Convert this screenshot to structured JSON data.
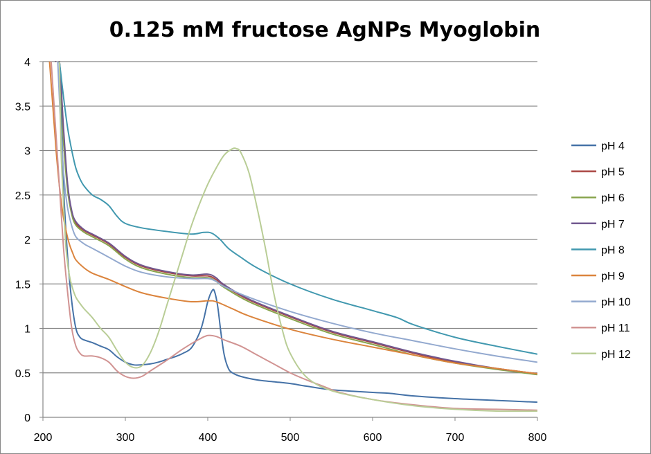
{
  "chart_data": {
    "type": "line",
    "title": "0.125 mM fructose AgNPs Myoglobin",
    "xlabel": "",
    "ylabel": "",
    "xlim": [
      200,
      800
    ],
    "ylim": [
      0,
      4
    ],
    "xticks": [
      200,
      300,
      400,
      500,
      600,
      700,
      800
    ],
    "yticks": [
      0,
      0.5,
      1,
      1.5,
      2,
      2.5,
      3,
      3.5,
      4
    ],
    "ytick_labels": [
      "0",
      "0.5",
      "1",
      "1.5",
      "2",
      "2.5",
      "3",
      "3.5",
      "4"
    ],
    "grid": "horizontal",
    "legend_position": "right",
    "series": [
      {
        "name": "pH 4",
        "color": "#4572A7",
        "x": [
          215,
          220,
          225,
          230,
          235,
          240,
          245,
          250,
          260,
          270,
          280,
          290,
          300,
          310,
          320,
          330,
          340,
          350,
          360,
          370,
          380,
          390,
          395,
          400,
          405,
          408,
          412,
          416,
          420,
          425,
          430,
          440,
          460,
          480,
          500,
          520,
          550,
          600,
          620,
          650,
          700,
          750,
          800
        ],
        "y": [
          4.0,
          4.0,
          2.6,
          1.8,
          1.3,
          1.0,
          0.9,
          0.87,
          0.84,
          0.8,
          0.76,
          0.68,
          0.62,
          0.59,
          0.59,
          0.6,
          0.62,
          0.65,
          0.68,
          0.72,
          0.78,
          0.95,
          1.1,
          1.3,
          1.42,
          1.42,
          1.25,
          0.95,
          0.7,
          0.55,
          0.5,
          0.46,
          0.42,
          0.4,
          0.38,
          0.35,
          0.31,
          0.28,
          0.27,
          0.24,
          0.21,
          0.19,
          0.17
        ]
      },
      {
        "name": "pH 5",
        "color": "#AA4643",
        "x": [
          215,
          220,
          225,
          230,
          235,
          240,
          250,
          260,
          280,
          300,
          320,
          350,
          380,
          400,
          410,
          420,
          450,
          500,
          550,
          600,
          650,
          700,
          750,
          800
        ],
        "y": [
          4.0,
          4.0,
          3.2,
          2.6,
          2.3,
          2.18,
          2.1,
          2.05,
          1.95,
          1.8,
          1.7,
          1.63,
          1.59,
          1.59,
          1.55,
          1.48,
          1.32,
          1.13,
          0.96,
          0.84,
          0.72,
          0.62,
          0.55,
          0.49
        ]
      },
      {
        "name": "pH 6",
        "color": "#89A54E",
        "x": [
          215,
          220,
          225,
          230,
          235,
          240,
          250,
          260,
          280,
          300,
          320,
          350,
          380,
          400,
          410,
          420,
          450,
          500,
          550,
          600,
          650,
          700,
          750,
          800
        ],
        "y": [
          4.0,
          4.0,
          3.1,
          2.55,
          2.28,
          2.16,
          2.08,
          2.03,
          1.93,
          1.78,
          1.68,
          1.61,
          1.57,
          1.57,
          1.53,
          1.46,
          1.3,
          1.11,
          0.94,
          0.82,
          0.7,
          0.61,
          0.54,
          0.48
        ]
      },
      {
        "name": "pH 7",
        "color": "#71588F",
        "x": [
          215,
          220,
          225,
          230,
          235,
          240,
          250,
          260,
          280,
          300,
          320,
          350,
          380,
          400,
          410,
          420,
          450,
          500,
          550,
          600,
          650,
          700,
          750,
          800
        ],
        "y": [
          4.0,
          4.0,
          3.25,
          2.62,
          2.32,
          2.2,
          2.11,
          2.06,
          1.96,
          1.81,
          1.71,
          1.64,
          1.6,
          1.61,
          1.57,
          1.49,
          1.33,
          1.14,
          0.97,
          0.85,
          0.73,
          0.63,
          0.55,
          0.49
        ]
      },
      {
        "name": "pH 8",
        "color": "#4198AF",
        "x": [
          220,
          225,
          230,
          235,
          240,
          245,
          250,
          260,
          270,
          280,
          290,
          300,
          320,
          350,
          380,
          395,
          405,
          415,
          425,
          440,
          460,
          500,
          550,
          600,
          630,
          650,
          700,
          750,
          800
        ],
        "y": [
          4.0,
          3.6,
          3.25,
          3.0,
          2.8,
          2.68,
          2.6,
          2.5,
          2.45,
          2.38,
          2.26,
          2.18,
          2.13,
          2.09,
          2.06,
          2.08,
          2.07,
          2.0,
          1.9,
          1.8,
          1.68,
          1.5,
          1.33,
          1.2,
          1.12,
          1.04,
          0.9,
          0.8,
          0.71
        ]
      },
      {
        "name": "pH 9",
        "color": "#DB843D",
        "x": [
          208,
          212,
          216,
          220,
          224,
          228,
          232,
          236,
          240,
          250,
          260,
          280,
          300,
          320,
          350,
          380,
          400,
          410,
          430,
          450,
          500,
          550,
          600,
          650,
          700,
          750,
          800
        ],
        "y": [
          4.0,
          3.5,
          3.0,
          2.6,
          2.3,
          2.1,
          1.95,
          1.85,
          1.77,
          1.68,
          1.62,
          1.55,
          1.47,
          1.4,
          1.34,
          1.3,
          1.31,
          1.3,
          1.22,
          1.14,
          0.99,
          0.88,
          0.79,
          0.7,
          0.61,
          0.55,
          0.49
        ]
      },
      {
        "name": "pH 10",
        "color": "#93A9CF",
        "x": [
          218,
          222,
          226,
          230,
          235,
          240,
          250,
          260,
          280,
          300,
          320,
          350,
          380,
          400,
          410,
          420,
          450,
          500,
          550,
          600,
          650,
          700,
          750,
          800
        ],
        "y": [
          4.0,
          3.2,
          2.65,
          2.35,
          2.15,
          2.03,
          1.95,
          1.9,
          1.8,
          1.7,
          1.63,
          1.58,
          1.56,
          1.56,
          1.53,
          1.47,
          1.35,
          1.19,
          1.06,
          0.95,
          0.86,
          0.77,
          0.69,
          0.62
        ]
      },
      {
        "name": "pH 11",
        "color": "#D19392",
        "x": [
          210,
          215,
          220,
          225,
          230,
          235,
          240,
          245,
          250,
          260,
          270,
          280,
          290,
          300,
          310,
          320,
          330,
          350,
          370,
          390,
          400,
          410,
          420,
          440,
          460,
          480,
          500,
          520,
          540,
          560,
          600,
          650,
          700,
          750,
          800
        ],
        "y": [
          4.0,
          3.3,
          2.6,
          1.9,
          1.4,
          1.0,
          0.8,
          0.72,
          0.69,
          0.69,
          0.67,
          0.62,
          0.52,
          0.46,
          0.44,
          0.46,
          0.52,
          0.64,
          0.77,
          0.88,
          0.92,
          0.91,
          0.87,
          0.8,
          0.7,
          0.6,
          0.5,
          0.42,
          0.35,
          0.28,
          0.2,
          0.14,
          0.1,
          0.09,
          0.08
        ]
      },
      {
        "name": "pH 12",
        "color": "#B9CD96",
        "x": [
          220,
          222,
          225,
          228,
          232,
          236,
          240,
          245,
          250,
          260,
          270,
          280,
          290,
          300,
          310,
          320,
          330,
          340,
          350,
          360,
          370,
          380,
          390,
          400,
          410,
          420,
          430,
          435,
          440,
          450,
          460,
          470,
          480,
          490,
          500,
          520,
          550,
          600,
          650,
          700,
          750,
          800
        ],
        "y": [
          4.0,
          3.0,
          2.4,
          1.9,
          1.6,
          1.45,
          1.35,
          1.28,
          1.22,
          1.12,
          1.0,
          0.9,
          0.75,
          0.62,
          0.56,
          0.58,
          0.72,
          0.95,
          1.25,
          1.55,
          1.85,
          2.15,
          2.4,
          2.62,
          2.8,
          2.95,
          3.02,
          3.02,
          2.98,
          2.75,
          2.35,
          1.9,
          1.4,
          1.0,
          0.72,
          0.45,
          0.3,
          0.2,
          0.13,
          0.09,
          0.07,
          0.07
        ]
      }
    ]
  }
}
